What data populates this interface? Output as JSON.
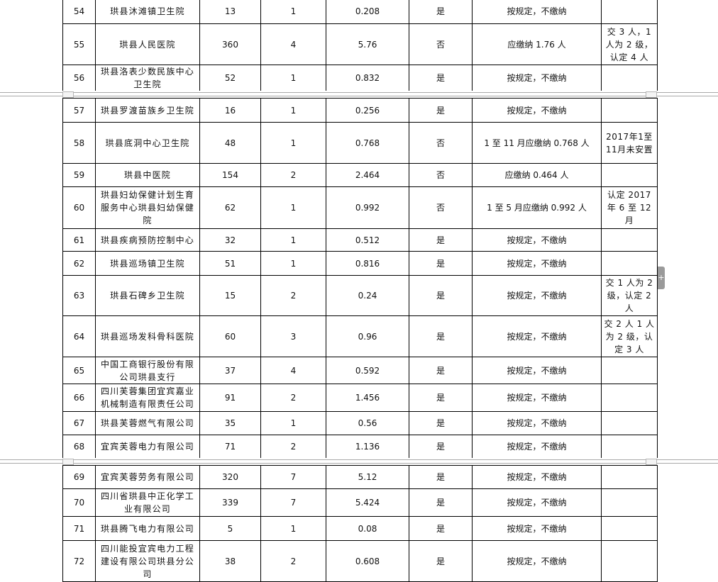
{
  "pages": [
    {
      "rows": [
        {
          "no": "54",
          "name": "珙县沐滩镇卫生院",
          "a": "13",
          "b": "1",
          "c": "0.208",
          "d": "是",
          "e": "按规定，不缴纳",
          "f": ""
        },
        {
          "no": "55",
          "name": "珙县人民医院",
          "a": "360",
          "b": "4",
          "c": "5.76",
          "d": "否",
          "e": "应缴纳 1.76 人",
          "f": "交 3 人，1 人为 2 级，认定 4 人"
        },
        {
          "no": "56",
          "name": "珙县洛表少数民族中心卫生院",
          "a": "52",
          "b": "1",
          "c": "0.832",
          "d": "是",
          "e": "按规定，不缴纳",
          "f": ""
        }
      ]
    },
    {
      "rows": [
        {
          "no": "57",
          "name": "珙县罗渡苗族乡卫生院",
          "a": "16",
          "b": "1",
          "c": "0.256",
          "d": "是",
          "e": "按规定，不缴纳",
          "f": ""
        },
        {
          "no": "58",
          "name": "珙县底洞中心卫生院",
          "a": "48",
          "b": "1",
          "c": "0.768",
          "d": "否",
          "e": "1 至 11 月应缴纳 0.768 人",
          "f": "2017年1至11月未安置"
        },
        {
          "no": "59",
          "name": "珙县中医院",
          "a": "154",
          "b": "2",
          "c": "2.464",
          "d": "否",
          "e": "应缴纳 0.464 人",
          "f": ""
        },
        {
          "no": "60",
          "name": "珙县妇幼保健计划生育服务中心珙县妇幼保健院",
          "a": "62",
          "b": "1",
          "c": "0.992",
          "d": "否",
          "e": "1 至 5 月应缴纳 0.992 人",
          "f": "认定 2017 年 6 至 12 月"
        },
        {
          "no": "61",
          "name": "珙县疾病预防控制中心",
          "a": "32",
          "b": "1",
          "c": "0.512",
          "d": "是",
          "e": "按规定，不缴纳",
          "f": ""
        },
        {
          "no": "62",
          "name": "珙县巡场镇卫生院",
          "a": "51",
          "b": "1",
          "c": "0.816",
          "d": "是",
          "e": "按规定，不缴纳",
          "f": ""
        },
        {
          "no": "63",
          "name": "珙县石碑乡卫生院",
          "a": "15",
          "b": "2",
          "c": "0.24",
          "d": "是",
          "e": "按规定，不缴纳",
          "f": "交 1 人为 2 级，认定 2 人"
        },
        {
          "no": "64",
          "name": "珙县巡场发科骨科医院",
          "a": "60",
          "b": "3",
          "c": "0.96",
          "d": "是",
          "e": "按规定，不缴纳",
          "f": "交 2 人 1 人为 2 级，认定 3 人"
        },
        {
          "no": "65",
          "name": "中国工商银行股份有限公司珙县支行",
          "a": "37",
          "b": "4",
          "c": "0.592",
          "d": "是",
          "e": "按规定，不缴纳",
          "f": ""
        },
        {
          "no": "66",
          "name": "四川芙蓉集团宜宾嘉业机械制造有限责任公司",
          "a": "91",
          "b": "2",
          "c": "1.456",
          "d": "是",
          "e": "按规定，不缴纳",
          "f": ""
        },
        {
          "no": "67",
          "name": "珙县芙蓉燃气有限公司",
          "a": "35",
          "b": "1",
          "c": "0.56",
          "d": "是",
          "e": "按规定，不缴纳",
          "f": ""
        },
        {
          "no": "68",
          "name": "宜宾芙蓉电力有限公司",
          "a": "71",
          "b": "2",
          "c": "1.136",
          "d": "是",
          "e": "按规定，不缴纳",
          "f": ""
        }
      ]
    },
    {
      "rows": [
        {
          "no": "69",
          "name": "宜宾芙蓉劳务有限公司",
          "a": "320",
          "b": "7",
          "c": "5.12",
          "d": "是",
          "e": "按规定，不缴纳",
          "f": ""
        },
        {
          "no": "70",
          "name": "四川省珙县中正化学工业有限公司",
          "a": "339",
          "b": "7",
          "c": "5.424",
          "d": "是",
          "e": "按规定，不缴纳",
          "f": ""
        },
        {
          "no": "71",
          "name": "珙县腾飞电力有限公司",
          "a": "5",
          "b": "1",
          "c": "0.08",
          "d": "是",
          "e": "按规定，不缴纳",
          "f": ""
        },
        {
          "no": "72",
          "name": "四川能投宜宾电力工程建设有限公司珙县分公司",
          "a": "38",
          "b": "2",
          "c": "0.608",
          "d": "是",
          "e": "按规定，不缴纳",
          "f": ""
        }
      ]
    }
  ],
  "side_tab": {
    "icon": "plus-icon",
    "label": "+"
  }
}
